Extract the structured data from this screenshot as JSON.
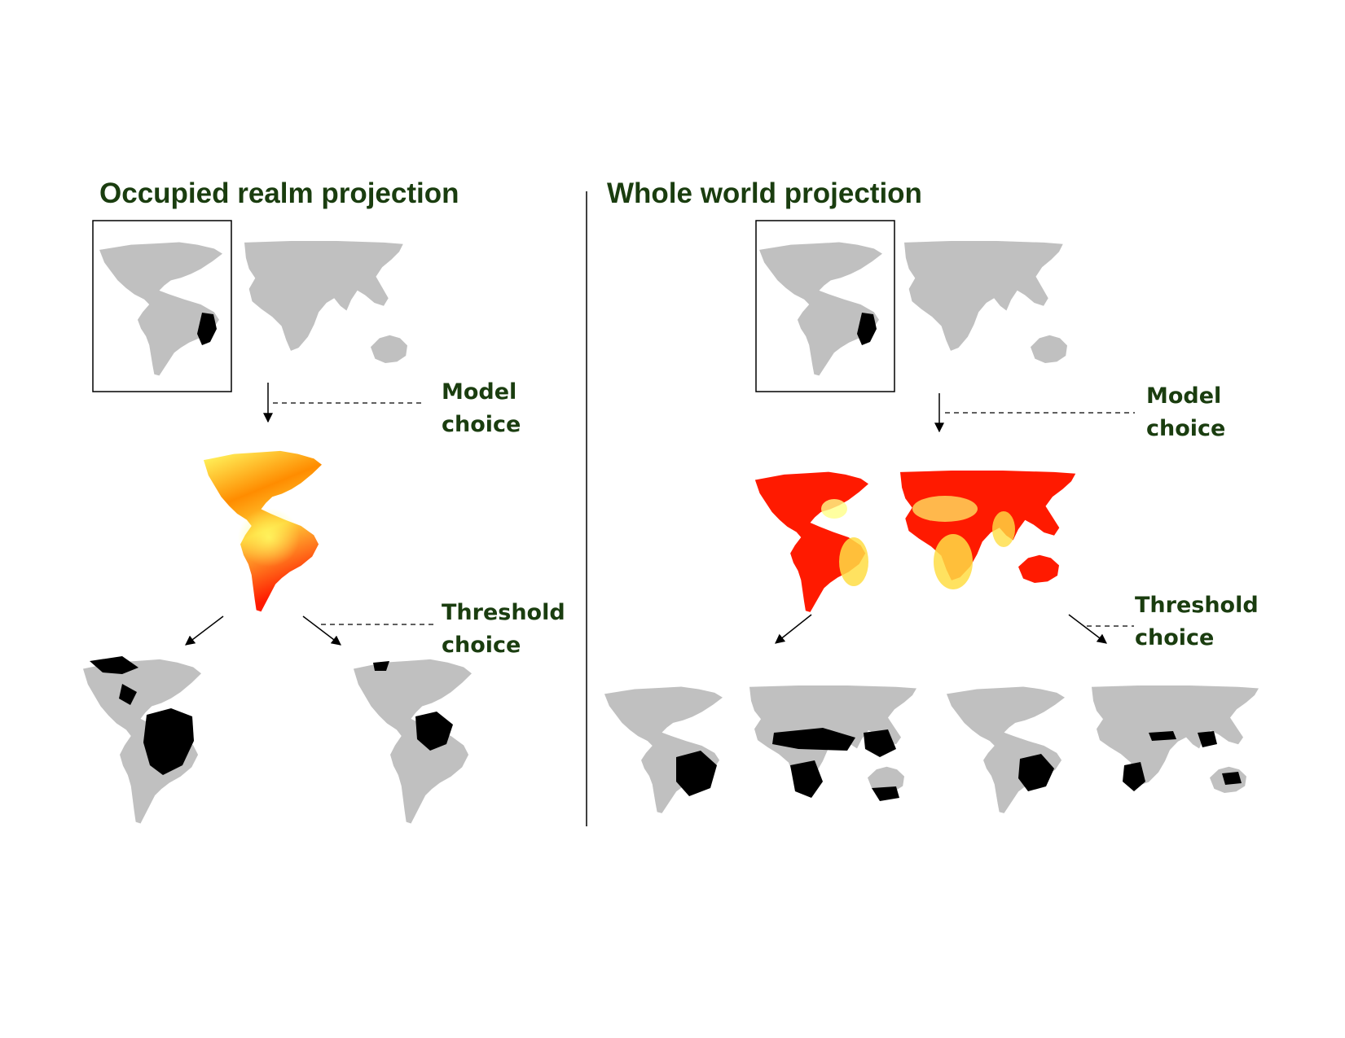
{
  "colors": {
    "title": "#1a3d0f",
    "land_background": "#c0c0c0",
    "occupied_range": "#000000",
    "suitability_low": "#ff1a00",
    "suitability_mid": "#ff8c00",
    "suitability_high": "#ffff66",
    "predicted_presence": "#000000"
  },
  "left_panel": {
    "title": "Occupied realm projection",
    "model_choice_label": [
      "Model",
      "choice"
    ],
    "threshold_choice_label": [
      "Threshold",
      "choice"
    ]
  },
  "right_panel": {
    "title": "Whole world projection",
    "model_choice_label": [
      "Model",
      "choice"
    ],
    "threshold_choice_label": [
      "Threshold",
      "choice"
    ]
  }
}
